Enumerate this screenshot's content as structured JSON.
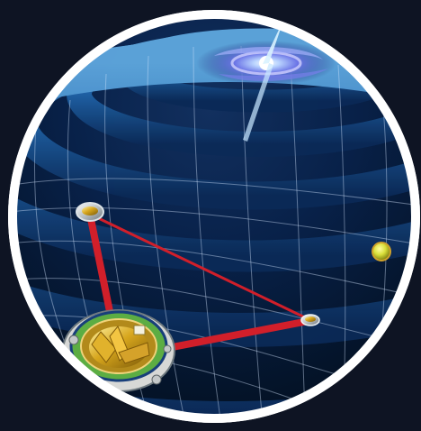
{
  "image": {
    "subject": "gravitational-waves-lisa-illustration",
    "background_color": "#0e1423",
    "frame_color": "#ffffff",
    "space_color": "#061733",
    "wave_color": "#1f63a6",
    "wave_highlight": "#5fa8df",
    "laser_color": "#d11f2a",
    "planet_color": "#d9df3a",
    "galaxy_core_color": "#ffffff",
    "galaxy_arm_color": "#7f7ff0"
  }
}
